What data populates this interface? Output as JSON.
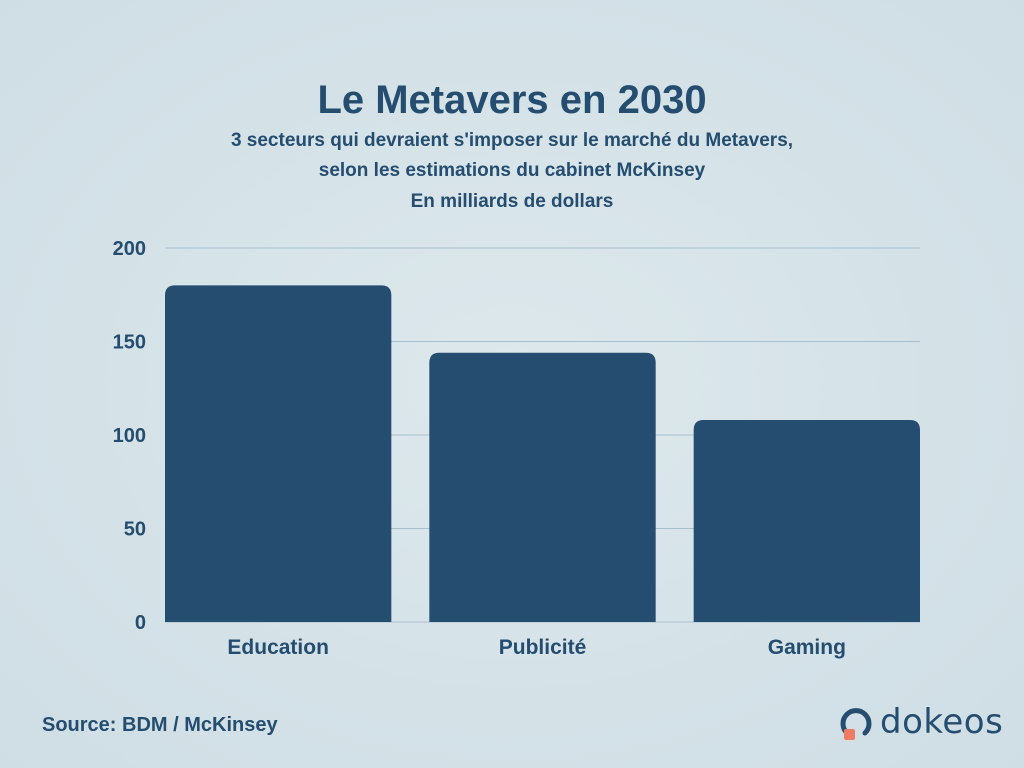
{
  "header": {
    "title": "Le Metavers en 2030",
    "subtitle_line1": "3 secteurs qui devraient s'imposer sur le marché du Metavers,",
    "subtitle_line2": "selon les estimations du cabinet McKinsey",
    "subtitle_line3": "En milliards de dollars"
  },
  "footer": {
    "source": "Source: BDM / McKinsey",
    "brand": "dokeos"
  },
  "colors": {
    "bar": "#244d70",
    "text": "#244d70",
    "grid": "#a9bfcb",
    "brand_accent": "#f07b64"
  },
  "icons": {
    "brand_logo": "dokeos-logo-icon"
  },
  "chart_data": {
    "type": "bar",
    "categories": [
      "Education",
      "Publicité",
      "Gaming"
    ],
    "values": [
      180,
      144,
      108
    ],
    "ylim": [
      0,
      200
    ],
    "yticks": [
      0,
      50,
      100,
      150,
      200
    ],
    "title": "Le Metavers en 2030",
    "xlabel": "",
    "ylabel": "",
    "grid": true,
    "legend": "none"
  }
}
